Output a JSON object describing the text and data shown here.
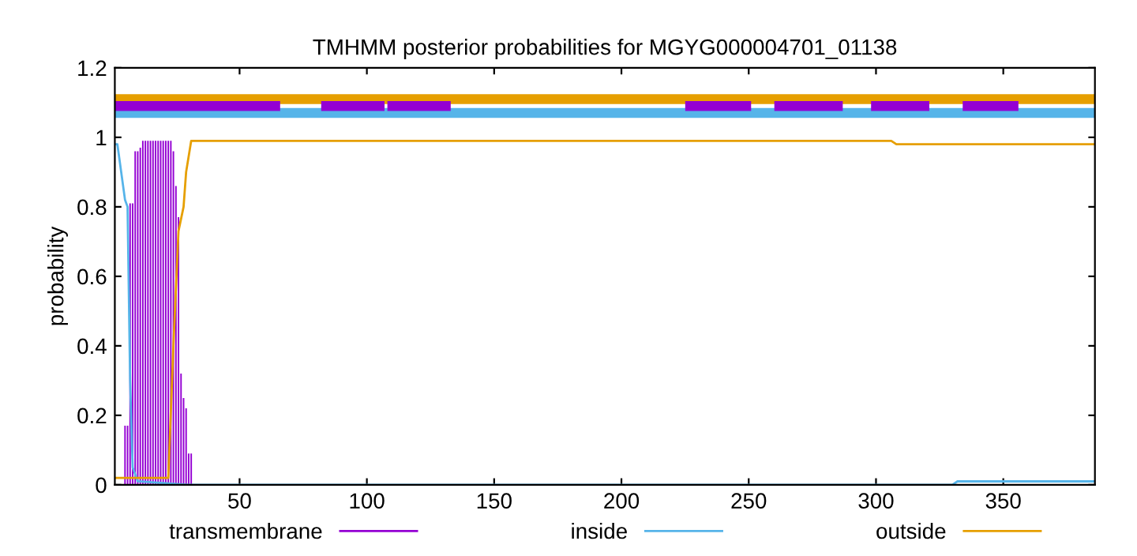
{
  "chart_data": {
    "type": "line",
    "title": "TMHMM posterior probabilities for MGYG000004701_01138",
    "ylabel": "probability",
    "xlim": [
      1,
      386
    ],
    "ylim": [
      0,
      1.2
    ],
    "xticks": [
      50,
      100,
      150,
      200,
      250,
      300,
      350
    ],
    "yticks": [
      0,
      0.2,
      0.4,
      0.6,
      0.8,
      1,
      1.2
    ],
    "grid": false,
    "legend": "bottom",
    "series": [
      {
        "name": "transmembrane",
        "type": "bar",
        "color": "#9400d3",
        "x": [
          1,
          2,
          3,
          4,
          5,
          6,
          7,
          8,
          9,
          10,
          11,
          12,
          13,
          14,
          15,
          16,
          17,
          18,
          19,
          20,
          21,
          22,
          23,
          24,
          25,
          26,
          27,
          28,
          29,
          30,
          31
        ],
        "values": [
          0,
          0,
          0,
          0,
          0.17,
          0.17,
          0.81,
          0.81,
          0.96,
          0.96,
          0.97,
          0.99,
          0.99,
          0.99,
          0.99,
          0.99,
          0.99,
          0.99,
          0.99,
          0.99,
          0.99,
          0.99,
          0.99,
          0.96,
          0.86,
          0.77,
          0.32,
          0.25,
          0.22,
          0.09,
          0.09
        ]
      },
      {
        "name": "inside",
        "color": "#56b4e9",
        "x": [
          1,
          2,
          5,
          6,
          7,
          8,
          10,
          30,
          330,
          332,
          386
        ],
        "values": [
          0.98,
          0.98,
          0.82,
          0.8,
          0.3,
          0.05,
          0.01,
          0,
          0,
          0.01,
          0.01
        ]
      },
      {
        "name": "outside",
        "color": "#e69f00",
        "x": [
          1,
          22,
          24,
          26,
          28,
          29,
          31,
          306,
          308,
          386
        ],
        "values": [
          0.02,
          0.02,
          0.4,
          0.73,
          0.8,
          0.9,
          0.99,
          0.99,
          0.98,
          0.98
        ]
      },
      {
        "color": "#e69f00",
        "x": [
          1,
          386
        ],
        "values": [
          1.11,
          1.11
        ]
      },
      {
        "color": "#56b4e9",
        "x": [
          1,
          386
        ],
        "values": [
          1.07,
          1.07
        ]
      },
      {
        "color": "#9400d3",
        "x": [
          1,
          64,
          64.5,
          84,
          105,
          105.5,
          110,
          131,
          131.5,
          227,
          249,
          249.5,
          262,
          285,
          285.5,
          300,
          319,
          319.5,
          336,
          354
        ],
        "values": [
          1.09,
          1.09,
          null,
          1.09,
          1.09,
          null,
          1.09,
          1.09,
          null,
          1.09,
          1.09,
          null,
          1.09,
          1.09,
          null,
          1.09,
          1.09,
          null,
          1.09,
          1.09
        ]
      }
    ]
  }
}
